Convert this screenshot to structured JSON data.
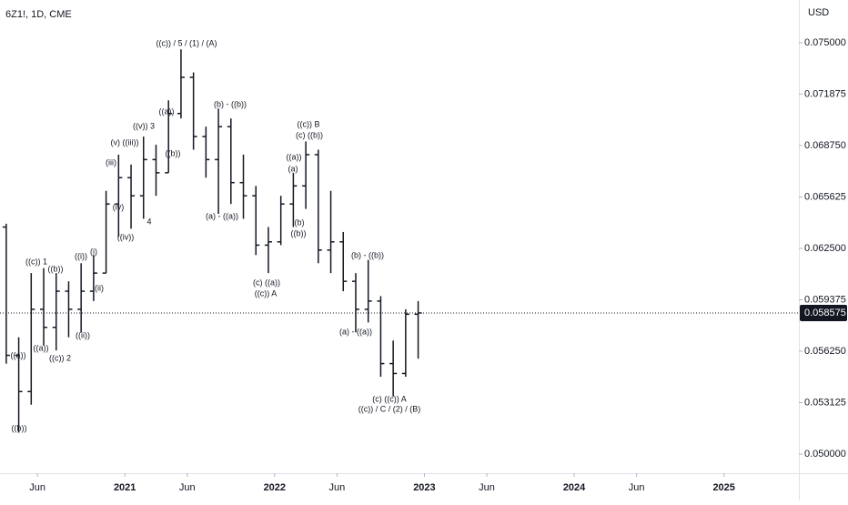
{
  "chart_data": {
    "type": "ohlc",
    "title": "6Z1!, 1D, CME",
    "y_axis_label": "USD",
    "color": "#131722",
    "x": [
      "2020-03",
      "2020-04",
      "2020-05",
      "2020-06",
      "2020-07",
      "2020-08",
      "2020-09",
      "2020-10",
      "2020-11",
      "2020-12",
      "2021-01",
      "2021-02",
      "2021-03",
      "2021-04",
      "2021-05",
      "2021-06",
      "2021-07",
      "2021-08",
      "2021-09",
      "2021-10",
      "2021-11",
      "2021-12",
      "2022-01",
      "2022-02",
      "2022-03",
      "2022-04",
      "2022-05",
      "2022-06",
      "2022-07",
      "2022-08",
      "2022-09",
      "2022-10",
      "2022-11",
      "2022-12"
    ],
    "open": [
      0.0638,
      0.056,
      0.0538,
      0.0588,
      0.0577,
      0.0599,
      0.0588,
      0.0599,
      0.061,
      0.0652,
      0.0668,
      0.0657,
      0.0679,
      0.0671,
      0.0707,
      0.0729,
      0.0693,
      0.0679,
      0.0699,
      0.0665,
      0.0657,
      0.0627,
      0.0629,
      0.0652,
      0.0663,
      0.0682,
      0.0624,
      0.0629,
      0.0605,
      0.0588,
      0.0593,
      0.0555,
      0.0549,
      0.0585
    ],
    "high": [
      0.064,
      0.0571,
      0.061,
      0.0613,
      0.061,
      0.0605,
      0.0616,
      0.0621,
      0.066,
      0.0682,
      0.0676,
      0.0693,
      0.0688,
      0.0715,
      0.0746,
      0.0732,
      0.0699,
      0.071,
      0.0704,
      0.0682,
      0.0663,
      0.0638,
      0.0657,
      0.0671,
      0.069,
      0.0685,
      0.066,
      0.0635,
      0.061,
      0.0618,
      0.0596,
      0.0569,
      0.0588,
      0.0593
    ],
    "low": [
      0.0555,
      0.0513,
      0.053,
      0.0566,
      0.0563,
      0.0571,
      0.0574,
      0.0593,
      0.061,
      0.0632,
      0.0637,
      0.0643,
      0.0657,
      0.0671,
      0.0704,
      0.0685,
      0.0668,
      0.0646,
      0.0652,
      0.0643,
      0.0621,
      0.061,
      0.0627,
      0.0638,
      0.0649,
      0.0616,
      0.061,
      0.0599,
      0.0574,
      0.058,
      0.0547,
      0.0535,
      0.0547,
      0.0558
    ],
    "close": [
      0.056,
      0.0538,
      0.0588,
      0.0577,
      0.0599,
      0.0588,
      0.0599,
      0.061,
      0.0652,
      0.0668,
      0.0657,
      0.0679,
      0.0671,
      0.0707,
      0.0729,
      0.0693,
      0.0679,
      0.0699,
      0.0665,
      0.0657,
      0.0627,
      0.0629,
      0.0652,
      0.0663,
      0.0682,
      0.0624,
      0.0629,
      0.0605,
      0.0588,
      0.0593,
      0.0555,
      0.0549,
      0.0585,
      0.058575
    ],
    "xlim": [
      "2020-03",
      "2025-07"
    ],
    "xticks": [
      {
        "value": "2020-06",
        "label": "Jun"
      },
      {
        "value": "2021-01",
        "label": "2021"
      },
      {
        "value": "2021-06",
        "label": "Jun"
      },
      {
        "value": "2022-01",
        "label": "2022"
      },
      {
        "value": "2022-06",
        "label": "Jun"
      },
      {
        "value": "2023-01",
        "label": "2023"
      },
      {
        "value": "2023-06",
        "label": "Jun"
      },
      {
        "value": "2024-01",
        "label": "2024"
      },
      {
        "value": "2024-06",
        "label": "Jun"
      },
      {
        "value": "2025-01",
        "label": "2025"
      }
    ],
    "ylim": [
      0.04884,
      0.0776
    ],
    "yticks": [
      {
        "value": 0.05,
        "label": "0.050000"
      },
      {
        "value": 0.053125,
        "label": "0.053125"
      },
      {
        "value": 0.05625,
        "label": "0.056250"
      },
      {
        "value": 0.059375,
        "label": "0.059375"
      },
      {
        "value": 0.0625,
        "label": "0.062500"
      },
      {
        "value": 0.065625,
        "label": "0.065625"
      },
      {
        "value": 0.06875,
        "label": "0.068750"
      },
      {
        "value": 0.071875,
        "label": "0.071875"
      },
      {
        "value": 0.075,
        "label": "0.075000"
      }
    ],
    "annotations": [
      "((c)) / 5 / (1) / (A)",
      "(b) - ((b))",
      "((a))",
      "((v)) 3",
      "(v) ((iii))",
      "((b))",
      "(iii)",
      "(iv)",
      "4",
      "((iv))",
      "(a) - ((a))",
      "((c)) B",
      "(c) ((b))",
      "((a))",
      "(a)",
      "(b)",
      "((b))",
      "(c) ((a))",
      "((c)) A",
      "((c)) 1",
      "((b))",
      "((i))",
      "(i)",
      "(ii)",
      "((a))",
      "((b))",
      "((a))",
      "((c)) 2",
      "((ii))",
      "(b) - ((b))",
      "(a) - ((a))",
      "(c) ((c)) A",
      "((c)) / C / (2) / (B)"
    ]
  }
}
